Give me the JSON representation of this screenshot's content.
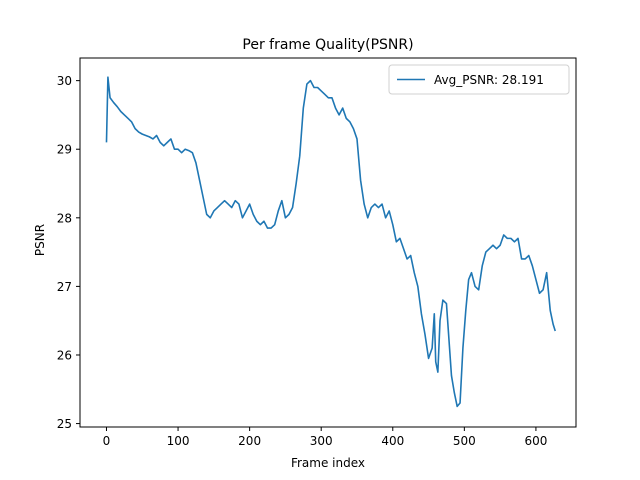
{
  "chart_data": {
    "type": "line",
    "title": "Per frame Quality(PSNR)",
    "xlabel": "Frame index",
    "ylabel": "PSNR",
    "xlim": [
      -37,
      656
    ],
    "ylim": [
      24.95,
      30.33
    ],
    "xticks": [
      0,
      100,
      200,
      300,
      400,
      500,
      600
    ],
    "yticks": [
      25,
      26,
      27,
      28,
      29,
      30
    ],
    "grid": false,
    "legend_position": "top-right",
    "series_color": "#1f77b4",
    "series": [
      {
        "name": "Avg_PSNR: 28.191",
        "points": [
          [
            0,
            29.1
          ],
          [
            2,
            30.05
          ],
          [
            5,
            29.75
          ],
          [
            10,
            29.68
          ],
          [
            15,
            29.62
          ],
          [
            20,
            29.55
          ],
          [
            25,
            29.5
          ],
          [
            30,
            29.45
          ],
          [
            35,
            29.4
          ],
          [
            40,
            29.3
          ],
          [
            45,
            29.25
          ],
          [
            50,
            29.22
          ],
          [
            55,
            29.2
          ],
          [
            60,
            29.18
          ],
          [
            65,
            29.15
          ],
          [
            70,
            29.2
          ],
          [
            75,
            29.1
          ],
          [
            80,
            29.05
          ],
          [
            85,
            29.1
          ],
          [
            90,
            29.15
          ],
          [
            95,
            29.0
          ],
          [
            100,
            29.0
          ],
          [
            105,
            28.95
          ],
          [
            110,
            29.0
          ],
          [
            115,
            28.98
          ],
          [
            120,
            28.95
          ],
          [
            125,
            28.8
          ],
          [
            130,
            28.55
          ],
          [
            135,
            28.3
          ],
          [
            140,
            28.05
          ],
          [
            145,
            28.0
          ],
          [
            150,
            28.1
          ],
          [
            155,
            28.15
          ],
          [
            160,
            28.2
          ],
          [
            165,
            28.25
          ],
          [
            170,
            28.2
          ],
          [
            175,
            28.15
          ],
          [
            180,
            28.25
          ],
          [
            185,
            28.2
          ],
          [
            190,
            28.0
          ],
          [
            195,
            28.1
          ],
          [
            200,
            28.2
          ],
          [
            205,
            28.05
          ],
          [
            210,
            27.95
          ],
          [
            215,
            27.9
          ],
          [
            220,
            27.95
          ],
          [
            225,
            27.85
          ],
          [
            230,
            27.85
          ],
          [
            235,
            27.9
          ],
          [
            240,
            28.1
          ],
          [
            245,
            28.25
          ],
          [
            250,
            28.0
          ],
          [
            255,
            28.05
          ],
          [
            260,
            28.15
          ],
          [
            265,
            28.5
          ],
          [
            270,
            28.9
          ],
          [
            275,
            29.6
          ],
          [
            280,
            29.95
          ],
          [
            285,
            30.0
          ],
          [
            290,
            29.9
          ],
          [
            295,
            29.9
          ],
          [
            300,
            29.85
          ],
          [
            305,
            29.8
          ],
          [
            310,
            29.75
          ],
          [
            315,
            29.75
          ],
          [
            320,
            29.6
          ],
          [
            325,
            29.5
          ],
          [
            330,
            29.6
          ],
          [
            335,
            29.45
          ],
          [
            340,
            29.4
          ],
          [
            345,
            29.3
          ],
          [
            350,
            29.15
          ],
          [
            355,
            28.55
          ],
          [
            360,
            28.2
          ],
          [
            365,
            28.0
          ],
          [
            370,
            28.15
          ],
          [
            375,
            28.2
          ],
          [
            380,
            28.15
          ],
          [
            385,
            28.2
          ],
          [
            390,
            28.0
          ],
          [
            395,
            28.1
          ],
          [
            400,
            27.9
          ],
          [
            405,
            27.65
          ],
          [
            410,
            27.7
          ],
          [
            415,
            27.55
          ],
          [
            420,
            27.4
          ],
          [
            425,
            27.45
          ],
          [
            430,
            27.2
          ],
          [
            435,
            27.0
          ],
          [
            440,
            26.6
          ],
          [
            445,
            26.3
          ],
          [
            450,
            25.95
          ],
          [
            455,
            26.1
          ],
          [
            458,
            26.6
          ],
          [
            460,
            25.9
          ],
          [
            463,
            25.75
          ],
          [
            466,
            26.5
          ],
          [
            470,
            26.8
          ],
          [
            475,
            26.75
          ],
          [
            478,
            26.3
          ],
          [
            482,
            25.7
          ],
          [
            486,
            25.45
          ],
          [
            490,
            25.25
          ],
          [
            494,
            25.3
          ],
          [
            498,
            26.1
          ],
          [
            502,
            26.65
          ],
          [
            506,
            27.1
          ],
          [
            510,
            27.2
          ],
          [
            515,
            27.0
          ],
          [
            520,
            26.95
          ],
          [
            525,
            27.3
          ],
          [
            530,
            27.5
          ],
          [
            535,
            27.55
          ],
          [
            540,
            27.6
          ],
          [
            545,
            27.55
          ],
          [
            550,
            27.6
          ],
          [
            555,
            27.75
          ],
          [
            560,
            27.7
          ],
          [
            565,
            27.7
          ],
          [
            570,
            27.65
          ],
          [
            575,
            27.7
          ],
          [
            580,
            27.4
          ],
          [
            585,
            27.4
          ],
          [
            590,
            27.45
          ],
          [
            595,
            27.3
          ],
          [
            600,
            27.1
          ],
          [
            605,
            26.9
          ],
          [
            610,
            26.95
          ],
          [
            615,
            27.2
          ],
          [
            620,
            26.65
          ],
          [
            624,
            26.45
          ],
          [
            627,
            26.35
          ]
        ]
      }
    ]
  }
}
